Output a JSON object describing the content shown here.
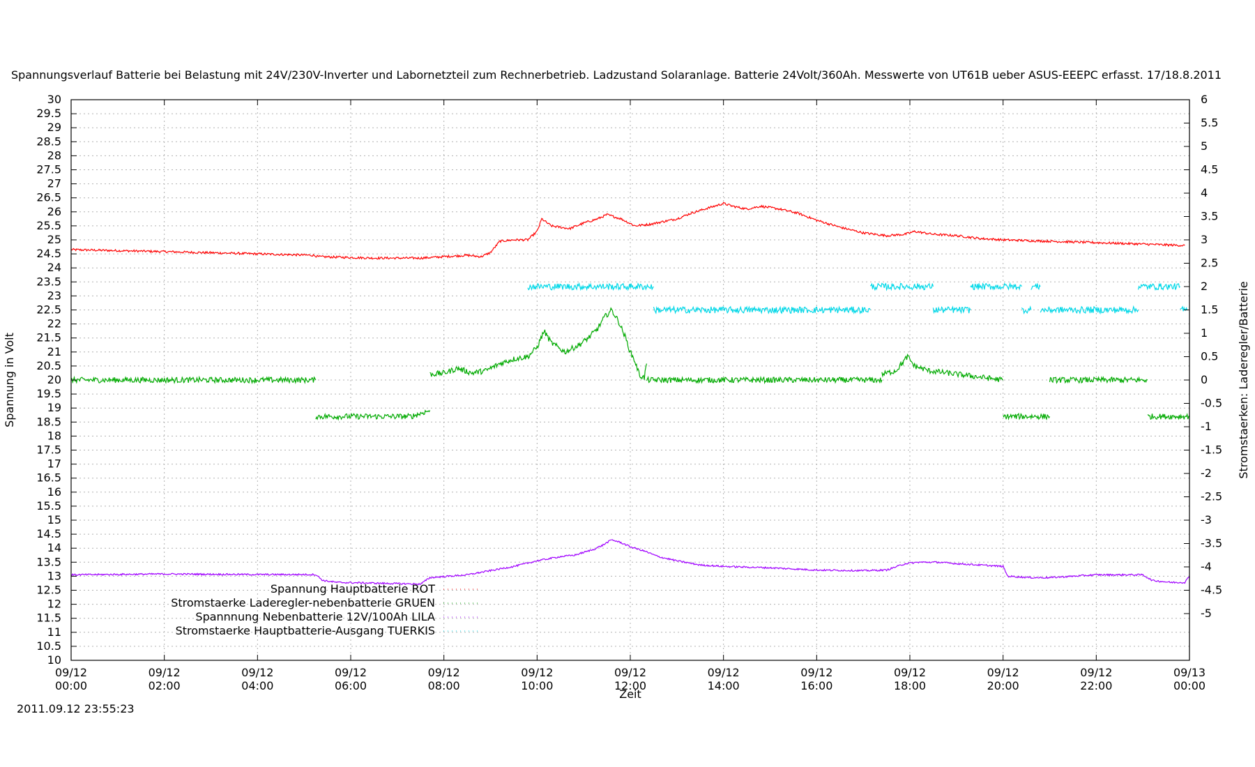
{
  "chart_data": {
    "type": "line",
    "title": "Spannungsverlauf Batterie bei Belastung mit 24V/230V-Inverter und Labornetzteil zum Rechnerbetrieb. Ladzustand Solaranlage. Batterie 24Volt/360Ah. Messwerte von UT61B ueber ASUS-EEEPC erfasst. 17/18.8.2011",
    "xlabel": "Zeit",
    "ylabel": "Spannung in Volt",
    "y2label": "Stromstaerken: Laderegler/Batterie",
    "timestamp": "2011.09.12 23:55:23",
    "xlim": [
      0,
      24
    ],
    "ylim": [
      10,
      30
    ],
    "y2lim": [
      -6,
      6
    ],
    "grid": true,
    "legend_position": "bottom-left inside",
    "x_ticks": [
      {
        "date": "09/12",
        "time": "00:00"
      },
      {
        "date": "09/12",
        "time": "02:00"
      },
      {
        "date": "09/12",
        "time": "04:00"
      },
      {
        "date": "09/12",
        "time": "06:00"
      },
      {
        "date": "09/12",
        "time": "08:00"
      },
      {
        "date": "09/12",
        "time": "10:00"
      },
      {
        "date": "09/12",
        "time": "12:00"
      },
      {
        "date": "09/12",
        "time": "14:00"
      },
      {
        "date": "09/12",
        "time": "16:00"
      },
      {
        "date": "09/12",
        "time": "18:00"
      },
      {
        "date": "09/12",
        "time": "20:00"
      },
      {
        "date": "09/12",
        "time": "22:00"
      },
      {
        "date": "09/13",
        "time": "00:00"
      }
    ],
    "y_ticks": [
      "10",
      "10.5",
      "11",
      "11.5",
      "12",
      "12.5",
      "13",
      "13.5",
      "14",
      "14.5",
      "15",
      "15.5",
      "16",
      "16.5",
      "17",
      "17.5",
      "18",
      "18.5",
      "19",
      "19.5",
      "20",
      "20.5",
      "21",
      "21.5",
      "22",
      "22.5",
      "23",
      "23.5",
      "24",
      "24.5",
      "25",
      "25.5",
      "26",
      "26.5",
      "27",
      "27.5",
      "28",
      "28.5",
      "29",
      "29.5",
      "30"
    ],
    "y2_ticks": [
      "-5",
      "-4.5",
      "-4",
      "-3.5",
      "-3",
      "-2.5",
      "-2",
      "-1.5",
      "-1",
      "-0.5",
      "0",
      "0.5",
      "1",
      "1.5",
      "2",
      "2.5",
      "3",
      "3.5",
      "4",
      "4.5",
      "5",
      "5.5",
      "6"
    ],
    "series": [
      {
        "name": "Spannung Hauptbatterie ROT",
        "color": "#ff0000",
        "axis": "y",
        "noise": 0.04,
        "segments": [
          [
            [
              0,
              24.65
            ],
            [
              2,
              24.58
            ],
            [
              4,
              24.5
            ],
            [
              5.2,
              24.45
            ],
            [
              5.3,
              24.4
            ],
            [
              6.5,
              24.35
            ],
            [
              7.5,
              24.35
            ],
            [
              8.5,
              24.45
            ],
            [
              8.8,
              24.4
            ],
            [
              9.0,
              24.55
            ],
            [
              9.2,
              24.95
            ],
            [
              9.5,
              25.0
            ],
            [
              9.8,
              25.0
            ],
            [
              10.0,
              25.3
            ],
            [
              10.1,
              25.75
            ],
            [
              10.3,
              25.5
            ],
            [
              10.7,
              25.4
            ],
            [
              11.0,
              25.6
            ],
            [
              11.3,
              25.75
            ],
            [
              11.5,
              25.9
            ],
            [
              11.8,
              25.75
            ],
            [
              12.1,
              25.5
            ],
            [
              12.4,
              25.55
            ],
            [
              12.7,
              25.65
            ],
            [
              13.0,
              25.75
            ],
            [
              13.3,
              25.95
            ],
            [
              13.7,
              26.15
            ],
            [
              14.0,
              26.3
            ],
            [
              14.2,
              26.2
            ],
            [
              14.5,
              26.1
            ],
            [
              14.8,
              26.2
            ],
            [
              15.2,
              26.1
            ],
            [
              15.6,
              25.95
            ],
            [
              16.0,
              25.7
            ],
            [
              16.5,
              25.45
            ],
            [
              17.0,
              25.25
            ],
            [
              17.5,
              25.15
            ],
            [
              17.9,
              25.2
            ],
            [
              18.1,
              25.3
            ],
            [
              18.5,
              25.2
            ],
            [
              19.0,
              25.15
            ],
            [
              19.5,
              25.05
            ],
            [
              20.0,
              25.0
            ],
            [
              21.0,
              24.95
            ],
            [
              22.0,
              24.9
            ],
            [
              23.0,
              24.85
            ],
            [
              23.5,
              24.82
            ],
            [
              23.9,
              24.8
            ]
          ]
        ]
      },
      {
        "name": "Stromstaerke Laderegler-nebenbatterie GRUEN",
        "color": "#00aa00",
        "axis": "y2",
        "noise": 0.06,
        "segments": [
          [
            [
              0,
              0
            ],
            [
              5.25,
              0
            ]
          ],
          [
            [
              5.25,
              -0.78
            ],
            [
              6.5,
              -0.78
            ],
            [
              7.3,
              -0.78
            ],
            [
              7.7,
              -0.65
            ]
          ],
          [
            [
              7.7,
              0.12
            ],
            [
              8.0,
              0.15
            ],
            [
              8.3,
              0.25
            ],
            [
              8.6,
              0.15
            ],
            [
              8.9,
              0.2
            ],
            [
              9.2,
              0.35
            ],
            [
              9.5,
              0.45
            ],
            [
              9.8,
              0.5
            ],
            [
              10.0,
              0.7
            ],
            [
              10.15,
              1.05
            ],
            [
              10.3,
              0.8
            ],
            [
              10.6,
              0.6
            ],
            [
              10.9,
              0.75
            ],
            [
              11.1,
              0.9
            ],
            [
              11.3,
              1.1
            ],
            [
              11.45,
              1.35
            ],
            [
              11.6,
              1.5
            ],
            [
              11.75,
              1.25
            ],
            [
              11.9,
              0.9
            ],
            [
              12.0,
              0.6
            ],
            [
              12.1,
              0.4
            ],
            [
              12.2,
              0.1
            ],
            [
              12.3,
              0.05
            ],
            [
              12.35,
              0.35
            ]
          ],
          [
            [
              12.35,
              0
            ],
            [
              17.4,
              0
            ]
          ],
          [
            [
              17.4,
              0.12
            ],
            [
              17.7,
              0.2
            ],
            [
              17.95,
              0.5
            ],
            [
              18.1,
              0.3
            ],
            [
              18.4,
              0.2
            ],
            [
              18.8,
              0.15
            ],
            [
              19.2,
              0.1
            ],
            [
              19.6,
              0.05
            ],
            [
              20.0,
              0
            ]
          ],
          [
            [
              20.0,
              -0.78
            ],
            [
              21.0,
              -0.78
            ]
          ],
          [
            [
              21.0,
              0
            ],
            [
              22.0,
              0
            ],
            [
              23.1,
              0
            ]
          ],
          [
            [
              23.1,
              -0.78
            ],
            [
              24.0,
              -0.78
            ]
          ]
        ]
      },
      {
        "name": "Spannnung Nebenbatterie 12V/100Ah LILA",
        "color": "#a000ff",
        "axis": "y",
        "noise": 0.03,
        "segments": [
          [
            [
              0,
              13.05
            ],
            [
              2,
              13.08
            ],
            [
              4,
              13.06
            ],
            [
              5.25,
              13.06
            ],
            [
              5.4,
              12.85
            ],
            [
              5.7,
              12.78
            ],
            [
              7.5,
              12.72
            ],
            [
              7.7,
              12.95
            ],
            [
              8.5,
              13.05
            ],
            [
              9.0,
              13.2
            ],
            [
              9.5,
              13.35
            ],
            [
              10.0,
              13.55
            ],
            [
              10.5,
              13.7
            ],
            [
              10.8,
              13.75
            ],
            [
              11.2,
              13.95
            ],
            [
              11.4,
              14.1
            ],
            [
              11.6,
              14.3
            ],
            [
              11.8,
              14.2
            ],
            [
              12.0,
              14.05
            ],
            [
              12.3,
              13.9
            ],
            [
              12.6,
              13.7
            ],
            [
              13.0,
              13.55
            ],
            [
              13.5,
              13.4
            ],
            [
              14.0,
              13.35
            ],
            [
              15.0,
              13.3
            ],
            [
              16.0,
              13.22
            ],
            [
              17.0,
              13.2
            ],
            [
              17.5,
              13.22
            ],
            [
              17.9,
              13.45
            ],
            [
              18.2,
              13.5
            ],
            [
              18.6,
              13.5
            ],
            [
              19.0,
              13.45
            ],
            [
              19.5,
              13.4
            ],
            [
              20.0,
              13.35
            ],
            [
              20.1,
              13.0
            ],
            [
              20.6,
              12.95
            ],
            [
              21.0,
              12.95
            ],
            [
              22.0,
              13.05
            ],
            [
              23.0,
              13.05
            ],
            [
              23.2,
              12.85
            ],
            [
              23.6,
              12.78
            ],
            [
              23.9,
              12.78
            ],
            [
              24.0,
              13.0
            ]
          ]
        ]
      },
      {
        "name": "Stromstaerke Hauptbatterie-Ausgang TUERKIS",
        "color": "#00d8e8",
        "axis": "y2",
        "noise": 0.07,
        "segments": [
          [
            [
              9.8,
              2.0
            ],
            [
              12.5,
              2.0
            ]
          ],
          [
            [
              12.5,
              1.5
            ],
            [
              17.15,
              1.5
            ]
          ],
          [
            [
              17.15,
              2.0
            ],
            [
              18.5,
              2.0
            ]
          ],
          [
            [
              18.5,
              1.5
            ],
            [
              19.3,
              1.5
            ]
          ],
          [
            [
              19.3,
              2.0
            ],
            [
              20.4,
              2.0
            ]
          ],
          [
            [
              20.4,
              1.5
            ],
            [
              20.6,
              1.5
            ]
          ],
          [
            [
              20.6,
              2.0
            ],
            [
              20.8,
              2.0
            ]
          ],
          [
            [
              20.8,
              1.5
            ],
            [
              22.9,
              1.5
            ]
          ],
          [
            [
              22.9,
              2.0
            ],
            [
              23.8,
              2.0
            ]
          ],
          [
            [
              23.8,
              1.5
            ],
            [
              23.95,
              1.5
            ]
          ]
        ]
      }
    ]
  }
}
